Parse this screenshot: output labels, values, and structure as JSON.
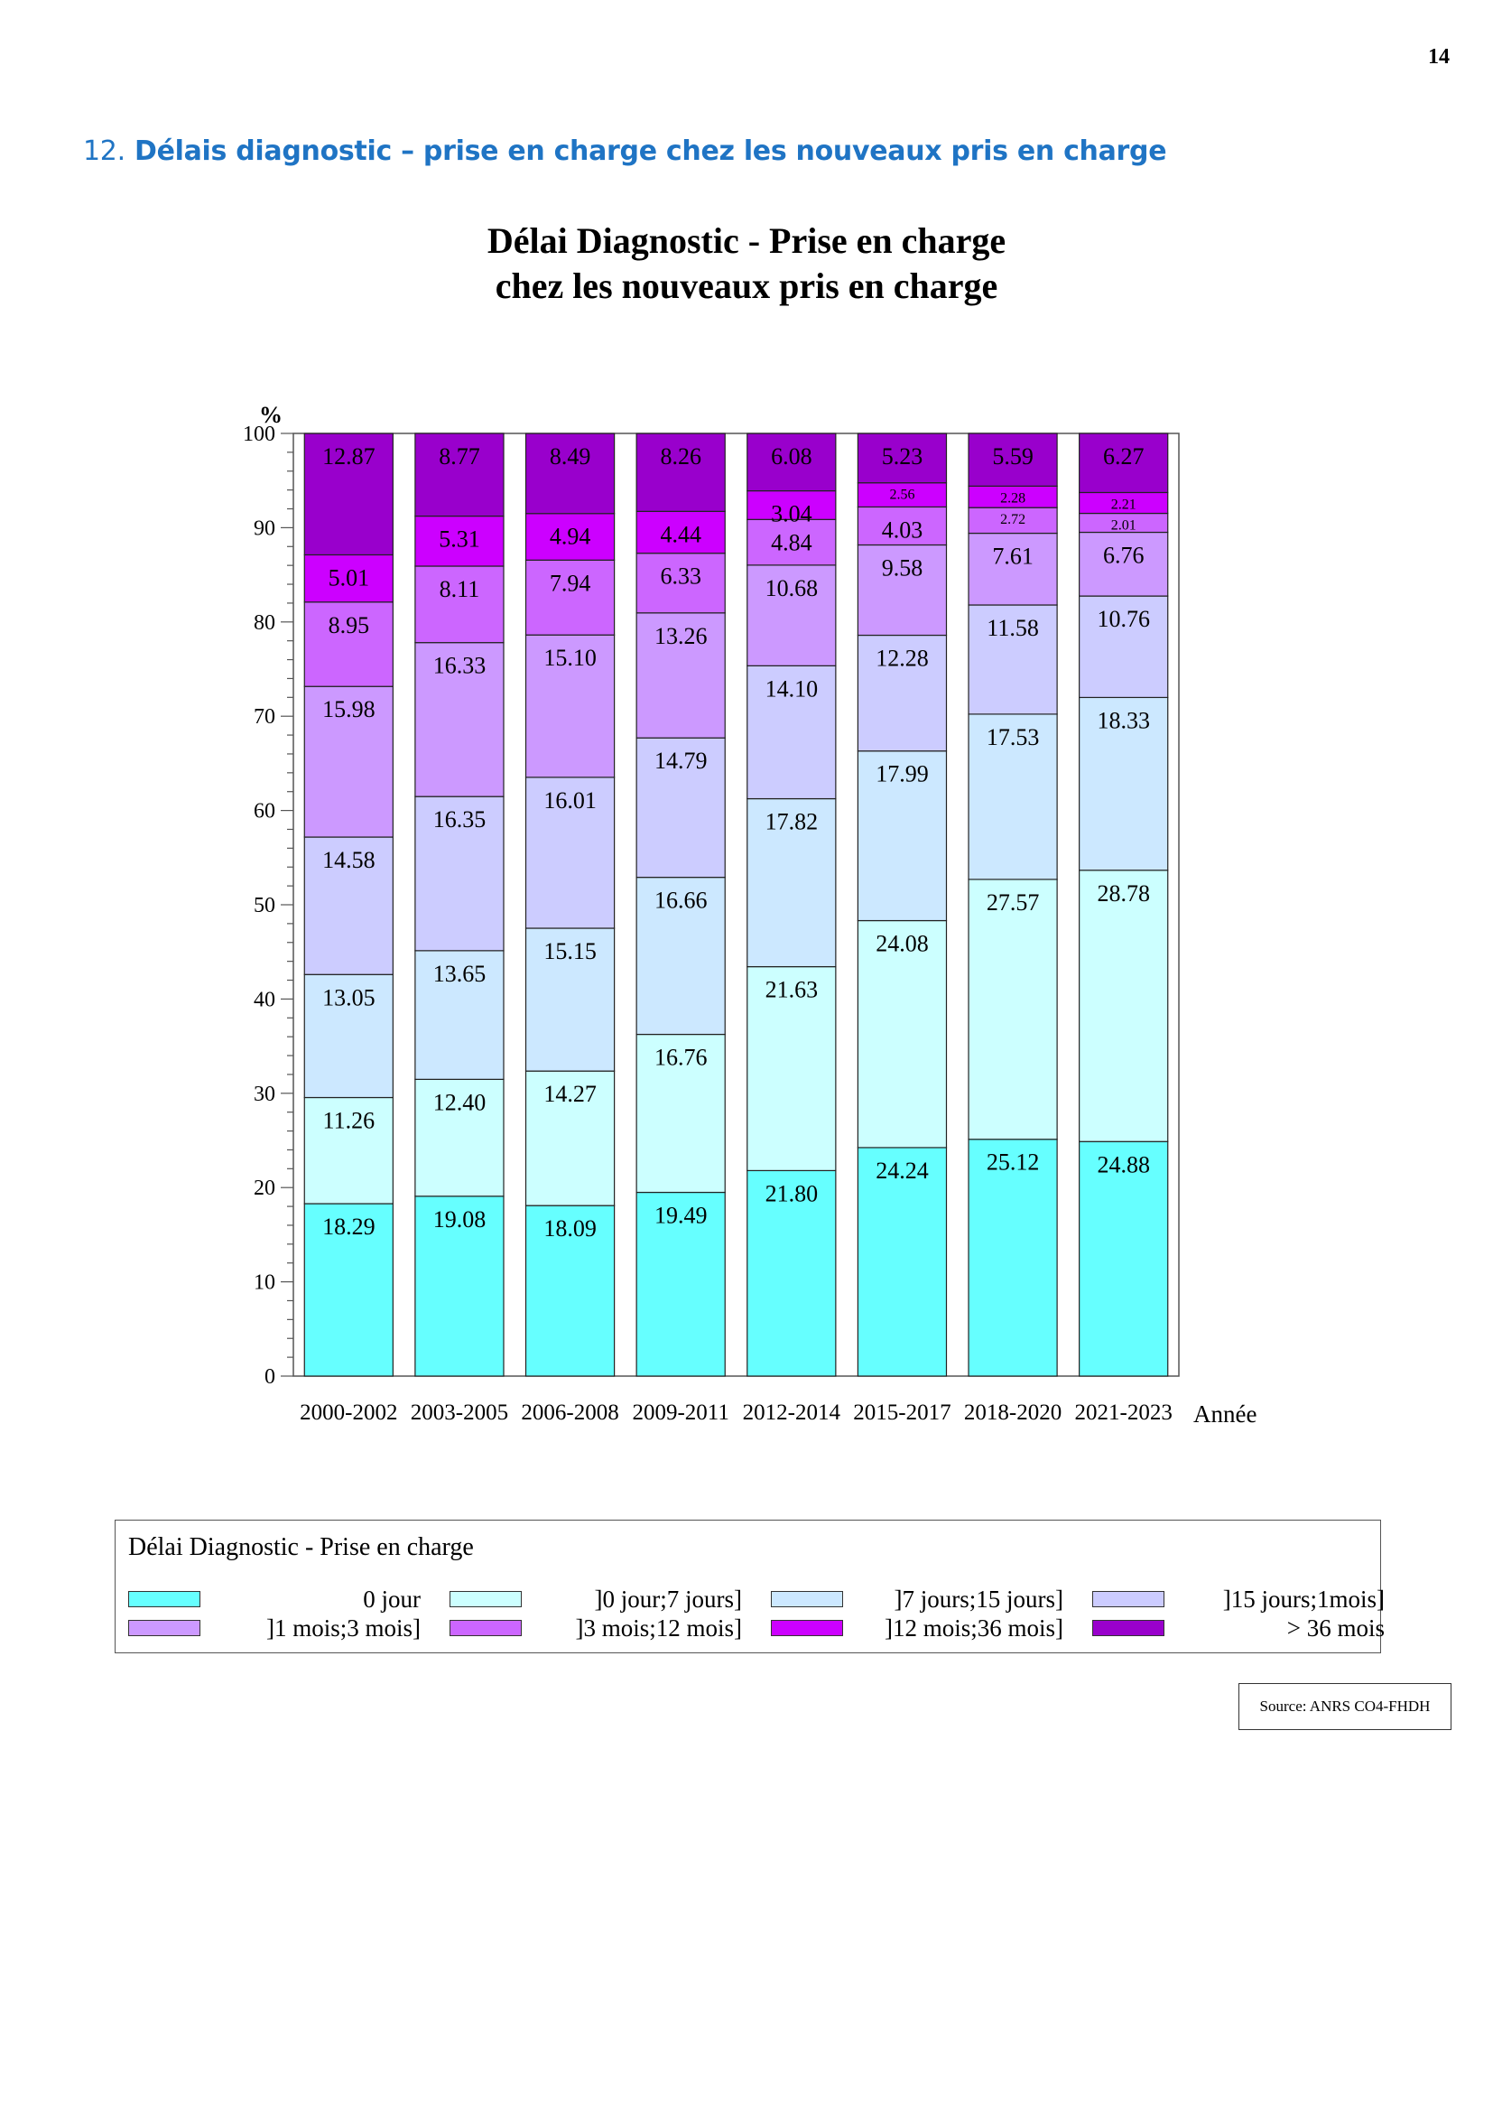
{
  "page": {
    "number": "14",
    "section_number": "12.",
    "section_title": "Délais diagnostic – prise en charge chez les nouveaux pris en charge",
    "source": "Source: ANRS CO4-FHDH"
  },
  "colors": {
    "0 jour": "#66ffff",
    "]0 jour;7 jours]": "#ccffff",
    "]7 jours;15 jours]": "#cce8ff",
    "]15 jours;1mois]": "#ccccff",
    "]1 mois;3 mois]": "#cc99ff",
    "]3 mois;12 mois]": "#cc66ff",
    "]12 mois;36 mois]": "#cc00ff",
    "> 36 mois": "#9900cc"
  },
  "legend": {
    "title": "Délai Diagnostic - Prise en charge",
    "items": [
      "0 jour",
      "]0 jour;7 jours]",
      "]7 jours;15 jours]",
      "]15 jours;1mois]",
      "]1 mois;3 mois]",
      "]3 mois;12 mois]",
      "]12 mois;36 mois]",
      "> 36 mois"
    ]
  },
  "chart_data": {
    "type": "bar",
    "stacked": true,
    "title": "Délai Diagnostic - Prise en charge\nchez les nouveaux pris en charge",
    "title_lines": [
      "Délai Diagnostic - Prise en charge",
      "chez les nouveaux pris en charge"
    ],
    "xlabel": "Année",
    "ylabel": "%",
    "ylim": [
      0,
      100
    ],
    "yticks": [
      0,
      10,
      20,
      30,
      40,
      50,
      60,
      70,
      80,
      90,
      100
    ],
    "grid": false,
    "categories": [
      "2000-2002",
      "2003-2005",
      "2006-2008",
      "2009-2011",
      "2012-2014",
      "2015-2017",
      "2018-2020",
      "2021-2023"
    ],
    "series": [
      {
        "name": "0 jour",
        "values": [
          18.29,
          19.08,
          18.09,
          19.49,
          21.8,
          24.24,
          25.12,
          24.88
        ]
      },
      {
        "name": "]0 jour;7 jours]",
        "values": [
          11.26,
          12.4,
          14.27,
          16.76,
          21.63,
          24.08,
          27.57,
          28.78
        ]
      },
      {
        "name": "]7 jours;15 jours]",
        "values": [
          13.05,
          13.65,
          15.15,
          16.66,
          17.82,
          17.99,
          17.53,
          18.33
        ]
      },
      {
        "name": "]15 jours;1mois]",
        "values": [
          14.58,
          16.35,
          16.01,
          14.79,
          14.1,
          12.28,
          11.58,
          10.76
        ]
      },
      {
        "name": "]1 mois;3 mois]",
        "values": [
          15.98,
          16.33,
          15.1,
          13.26,
          10.68,
          9.58,
          7.61,
          6.76
        ]
      },
      {
        "name": "]3 mois;12 mois]",
        "values": [
          8.95,
          8.11,
          7.94,
          6.33,
          4.84,
          4.03,
          2.72,
          2.01
        ]
      },
      {
        "name": "]12 mois;36 mois]",
        "values": [
          5.01,
          5.31,
          4.94,
          4.44,
          3.04,
          2.56,
          2.28,
          2.21
        ]
      },
      {
        "name": "> 36 mois",
        "values": [
          12.87,
          8.77,
          8.49,
          8.26,
          6.08,
          5.23,
          5.59,
          6.27
        ]
      }
    ]
  }
}
